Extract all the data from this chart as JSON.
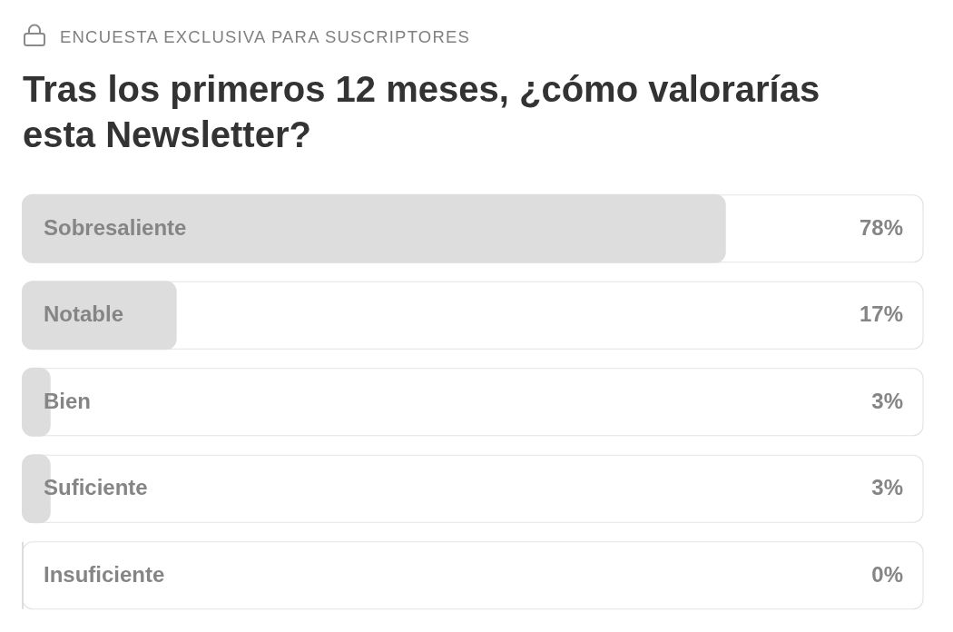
{
  "chart_data": {
    "type": "bar",
    "orientation": "horizontal",
    "subtitle": "ENCUESTA EXCLUSIVA PARA SUSCRIPTORES",
    "title": "Tras los primeros 12 meses, ¿cómo valorarías esta Newsletter?",
    "categories": [
      "Sobresaliente",
      "Notable",
      "Bien",
      "Suficiente",
      "Insuficiente"
    ],
    "values": [
      78,
      17,
      3,
      3,
      0
    ],
    "value_labels": [
      "78%",
      "17%",
      "3%",
      "3%",
      "0%"
    ],
    "color": "#dddddd",
    "xlim": [
      0,
      100
    ],
    "tick_labels": "y"
  }
}
